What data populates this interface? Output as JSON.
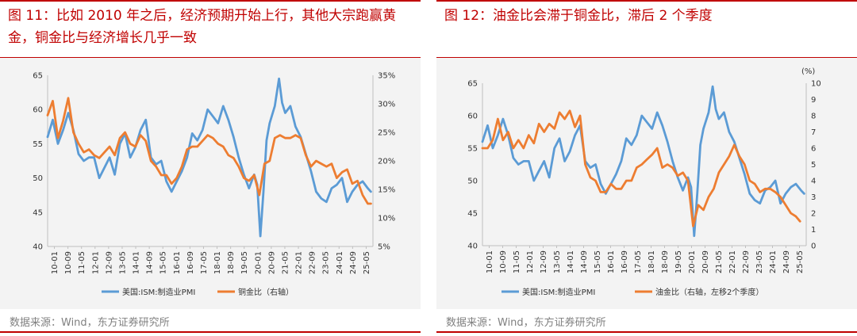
{
  "colors": {
    "blue": "#5b9bd5",
    "orange": "#ed7d31",
    "accent": "#c00000",
    "source": "#808080"
  },
  "left": {
    "title": "图 11：比如 2010 年之后，经济预期开始上行，其他大宗跑赢黄金，铜金比与经济增长几乎一致",
    "source": "数据来源：Wind，东方证券研究所"
  },
  "right": {
    "title": "图 12：油金比会滞于铜金比，滞后 2 个季度",
    "source": "数据来源：Wind，东方证券研究所"
  },
  "chart_data": [
    {
      "type": "line",
      "title": "比如 2010 年之后，经济预期开始上行，其他大宗跑赢黄金，铜金比与经济增长几乎一致",
      "x_ticks": [
        "10-01",
        "10-09",
        "11-05",
        "12-01",
        "12-09",
        "13-05",
        "14-01",
        "14-09",
        "15-05",
        "16-01",
        "16-09",
        "17-05",
        "18-01",
        "18-09",
        "19-05",
        "20-01",
        "20-09",
        "21-05",
        "22-01",
        "22-09",
        "23-05",
        "24-01",
        "24-09",
        "25-05"
      ],
      "x_range": [
        2010.0,
        2025.75
      ],
      "y_left": {
        "ticks": [
          "40",
          "45",
          "50",
          "55",
          "60",
          "65"
        ],
        "range": [
          40,
          65
        ]
      },
      "y_right": {
        "ticks": [
          "5%",
          "10%",
          "15%",
          "20%",
          "25%",
          "30%",
          "35%"
        ],
        "range": [
          5,
          35
        ]
      },
      "series": [
        {
          "name": "美国:ISM:制造业PMI",
          "axis": "left",
          "color": "#5b9bd5",
          "x": [
            2010.0,
            2010.25,
            2010.5,
            2010.75,
            2011.0,
            2011.25,
            2011.5,
            2011.75,
            2012.0,
            2012.25,
            2012.5,
            2012.75,
            2013.0,
            2013.25,
            2013.5,
            2013.75,
            2014.0,
            2014.25,
            2014.5,
            2014.75,
            2015.0,
            2015.25,
            2015.5,
            2015.75,
            2016.0,
            2016.25,
            2016.5,
            2016.75,
            2017.0,
            2017.25,
            2017.5,
            2017.75,
            2018.0,
            2018.25,
            2018.5,
            2018.75,
            2019.0,
            2019.25,
            2019.5,
            2019.75,
            2020.0,
            2020.15,
            2020.3,
            2020.45,
            2020.6,
            2020.75,
            2021.0,
            2021.2,
            2021.35,
            2021.5,
            2021.75,
            2022.0,
            2022.25,
            2022.5,
            2022.75,
            2023.0,
            2023.25,
            2023.5,
            2023.75,
            2024.0,
            2024.25,
            2024.5,
            2024.75,
            2025.0,
            2025.25,
            2025.5,
            2025.65
          ],
          "values": [
            56,
            58.5,
            55,
            57,
            59.5,
            57,
            53.5,
            52.5,
            53,
            53,
            50,
            51.5,
            53,
            50.5,
            55,
            56.5,
            53,
            54.5,
            57,
            58.5,
            53,
            52,
            52.5,
            49.5,
            48,
            49.5,
            51,
            53,
            56.5,
            55.5,
            57,
            60,
            59,
            58,
            60.5,
            58.5,
            56,
            53,
            50.5,
            48.5,
            50.5,
            49,
            41.5,
            48,
            55.5,
            58,
            60.5,
            64.5,
            61,
            59.5,
            60.5,
            57.5,
            56,
            53.5,
            51,
            48,
            47,
            46.5,
            48.5,
            49,
            50,
            46.5,
            48,
            49,
            49.5,
            48.5,
            48
          ]
        },
        {
          "name": "铜金比（右轴）",
          "axis": "right",
          "color": "#ed7d31",
          "x": [
            2010.0,
            2010.25,
            2010.5,
            2010.75,
            2011.0,
            2011.25,
            2011.5,
            2011.75,
            2012.0,
            2012.25,
            2012.5,
            2012.75,
            2013.0,
            2013.25,
            2013.5,
            2013.75,
            2014.0,
            2014.25,
            2014.5,
            2014.75,
            2015.0,
            2015.25,
            2015.5,
            2015.75,
            2016.0,
            2016.25,
            2016.5,
            2016.75,
            2017.0,
            2017.25,
            2017.5,
            2017.75,
            2018.0,
            2018.25,
            2018.5,
            2018.75,
            2019.0,
            2019.25,
            2019.5,
            2019.75,
            2020.0,
            2020.25,
            2020.5,
            2020.75,
            2021.0,
            2021.25,
            2021.5,
            2021.75,
            2022.0,
            2022.25,
            2022.5,
            2022.75,
            2023.0,
            2023.25,
            2023.5,
            2023.75,
            2024.0,
            2024.25,
            2024.5,
            2024.75,
            2025.0,
            2025.25,
            2025.5,
            2025.65
          ],
          "values": [
            28,
            30.5,
            24,
            27,
            31,
            25,
            23,
            21.5,
            22,
            21,
            20.5,
            21.5,
            22.5,
            21,
            24,
            25,
            23,
            22.5,
            24.5,
            23.5,
            20,
            19,
            17.5,
            17.5,
            16,
            17,
            19,
            22,
            22.5,
            22.5,
            23.5,
            24.5,
            24,
            23,
            22.5,
            21,
            20.5,
            19,
            17,
            16.5,
            17.5,
            14,
            19.5,
            20,
            24,
            24.5,
            24,
            24,
            24.5,
            24,
            21,
            19,
            20,
            19.5,
            19,
            19.5,
            17,
            18,
            18.5,
            16,
            16.5,
            14,
            12.5,
            12.5
          ]
        }
      ],
      "legend": [
        "美国:ISM:制造业PMI",
        "铜金比（右轴）"
      ]
    },
    {
      "type": "line",
      "title": "油金比会滞于铜金比，滞后 2 个季度",
      "x_ticks": [
        "10-01",
        "10-09",
        "11-05",
        "12-01",
        "12-09",
        "13-05",
        "14-01",
        "14-09",
        "15-05",
        "16-01",
        "16-09",
        "17-05",
        "18-01",
        "18-09",
        "19-05",
        "20-01",
        "20-09",
        "21-05",
        "22-01",
        "22-09",
        "23-05",
        "24-01",
        "24-09",
        "25-05"
      ],
      "x_range": [
        2010.0,
        2025.75
      ],
      "y_left": {
        "ticks": [
          "40",
          "45",
          "50",
          "55",
          "60",
          "65"
        ],
        "range": [
          40,
          65
        ]
      },
      "y_right": {
        "unit": "(%)",
        "ticks": [
          "0",
          "1",
          "2",
          "3",
          "4",
          "5",
          "6",
          "7",
          "8",
          "9",
          "10"
        ],
        "range": [
          0,
          10
        ]
      },
      "series": [
        {
          "name": "美国:ISM:制造业PMI",
          "axis": "left",
          "color": "#5b9bd5",
          "x": [
            2010.0,
            2010.25,
            2010.5,
            2010.75,
            2011.0,
            2011.25,
            2011.5,
            2011.75,
            2012.0,
            2012.25,
            2012.5,
            2012.75,
            2013.0,
            2013.25,
            2013.5,
            2013.75,
            2014.0,
            2014.25,
            2014.5,
            2014.75,
            2015.0,
            2015.25,
            2015.5,
            2015.75,
            2016.0,
            2016.25,
            2016.5,
            2016.75,
            2017.0,
            2017.25,
            2017.5,
            2017.75,
            2018.0,
            2018.25,
            2018.5,
            2018.75,
            2019.0,
            2019.25,
            2019.5,
            2019.75,
            2020.0,
            2020.15,
            2020.3,
            2020.45,
            2020.6,
            2020.75,
            2021.0,
            2021.2,
            2021.35,
            2021.5,
            2021.75,
            2022.0,
            2022.25,
            2022.5,
            2022.75,
            2023.0,
            2023.25,
            2023.5,
            2023.75,
            2024.0,
            2024.25,
            2024.5,
            2024.75,
            2025.0,
            2025.25,
            2025.5,
            2025.65
          ],
          "values": [
            56,
            58.5,
            55,
            57,
            59.5,
            57,
            53.5,
            52.5,
            53,
            53,
            50,
            51.5,
            53,
            50.5,
            55,
            56.5,
            53,
            54.5,
            57,
            58.5,
            53,
            52,
            52.5,
            49.5,
            48,
            49.5,
            51,
            53,
            56.5,
            55.5,
            57,
            60,
            59,
            58,
            60.5,
            58.5,
            56,
            53,
            50.5,
            48.5,
            50.5,
            49,
            41.5,
            48,
            55.5,
            58,
            60.5,
            64.5,
            61,
            59.5,
            60.5,
            57.5,
            56,
            53.5,
            51,
            48,
            47,
            46.5,
            48.5,
            49,
            50,
            46.5,
            48,
            49,
            49.5,
            48.5,
            48
          ]
        },
        {
          "name": "油金比（右轴，左移2个季度）",
          "axis": "right",
          "color": "#ed7d31",
          "x": [
            2010.0,
            2010.25,
            2010.5,
            2010.75,
            2011.0,
            2011.25,
            2011.5,
            2011.75,
            2012.0,
            2012.25,
            2012.5,
            2012.75,
            2013.0,
            2013.25,
            2013.5,
            2013.75,
            2014.0,
            2014.25,
            2014.5,
            2014.75,
            2015.0,
            2015.25,
            2015.5,
            2015.75,
            2016.0,
            2016.25,
            2016.5,
            2016.75,
            2017.0,
            2017.25,
            2017.5,
            2017.75,
            2018.0,
            2018.25,
            2018.5,
            2018.75,
            2019.0,
            2019.25,
            2019.5,
            2019.75,
            2020.0,
            2020.25,
            2020.5,
            2020.75,
            2021.0,
            2021.25,
            2021.5,
            2021.75,
            2022.0,
            2022.25,
            2022.5,
            2022.75,
            2023.0,
            2023.25,
            2023.5,
            2023.75,
            2024.0,
            2024.25,
            2024.5,
            2024.75,
            2025.0,
            2025.25,
            2025.45
          ],
          "values": [
            6,
            6,
            6.5,
            7.8,
            6.5,
            7,
            6,
            6.5,
            6,
            6.8,
            6.3,
            7.5,
            7,
            7.5,
            7.2,
            8.2,
            7.8,
            8.3,
            7.3,
            8,
            5,
            4.2,
            4,
            3.3,
            3.3,
            3.8,
            3.5,
            3.5,
            4,
            4,
            4.8,
            5,
            5.3,
            5.6,
            6,
            4.8,
            5,
            4.8,
            4.3,
            4.5,
            4,
            1.2,
            2.5,
            2.2,
            3,
            3.5,
            4.5,
            5,
            5.5,
            6.2,
            5.5,
            5,
            4,
            3.8,
            3.3,
            3.5,
            3.5,
            3.3,
            3,
            2.5,
            2,
            1.8,
            1.5
          ]
        }
      ],
      "legend": [
        "美国:ISM:制造业PMI",
        "油金比（右轴，左移2个季度）"
      ]
    }
  ]
}
